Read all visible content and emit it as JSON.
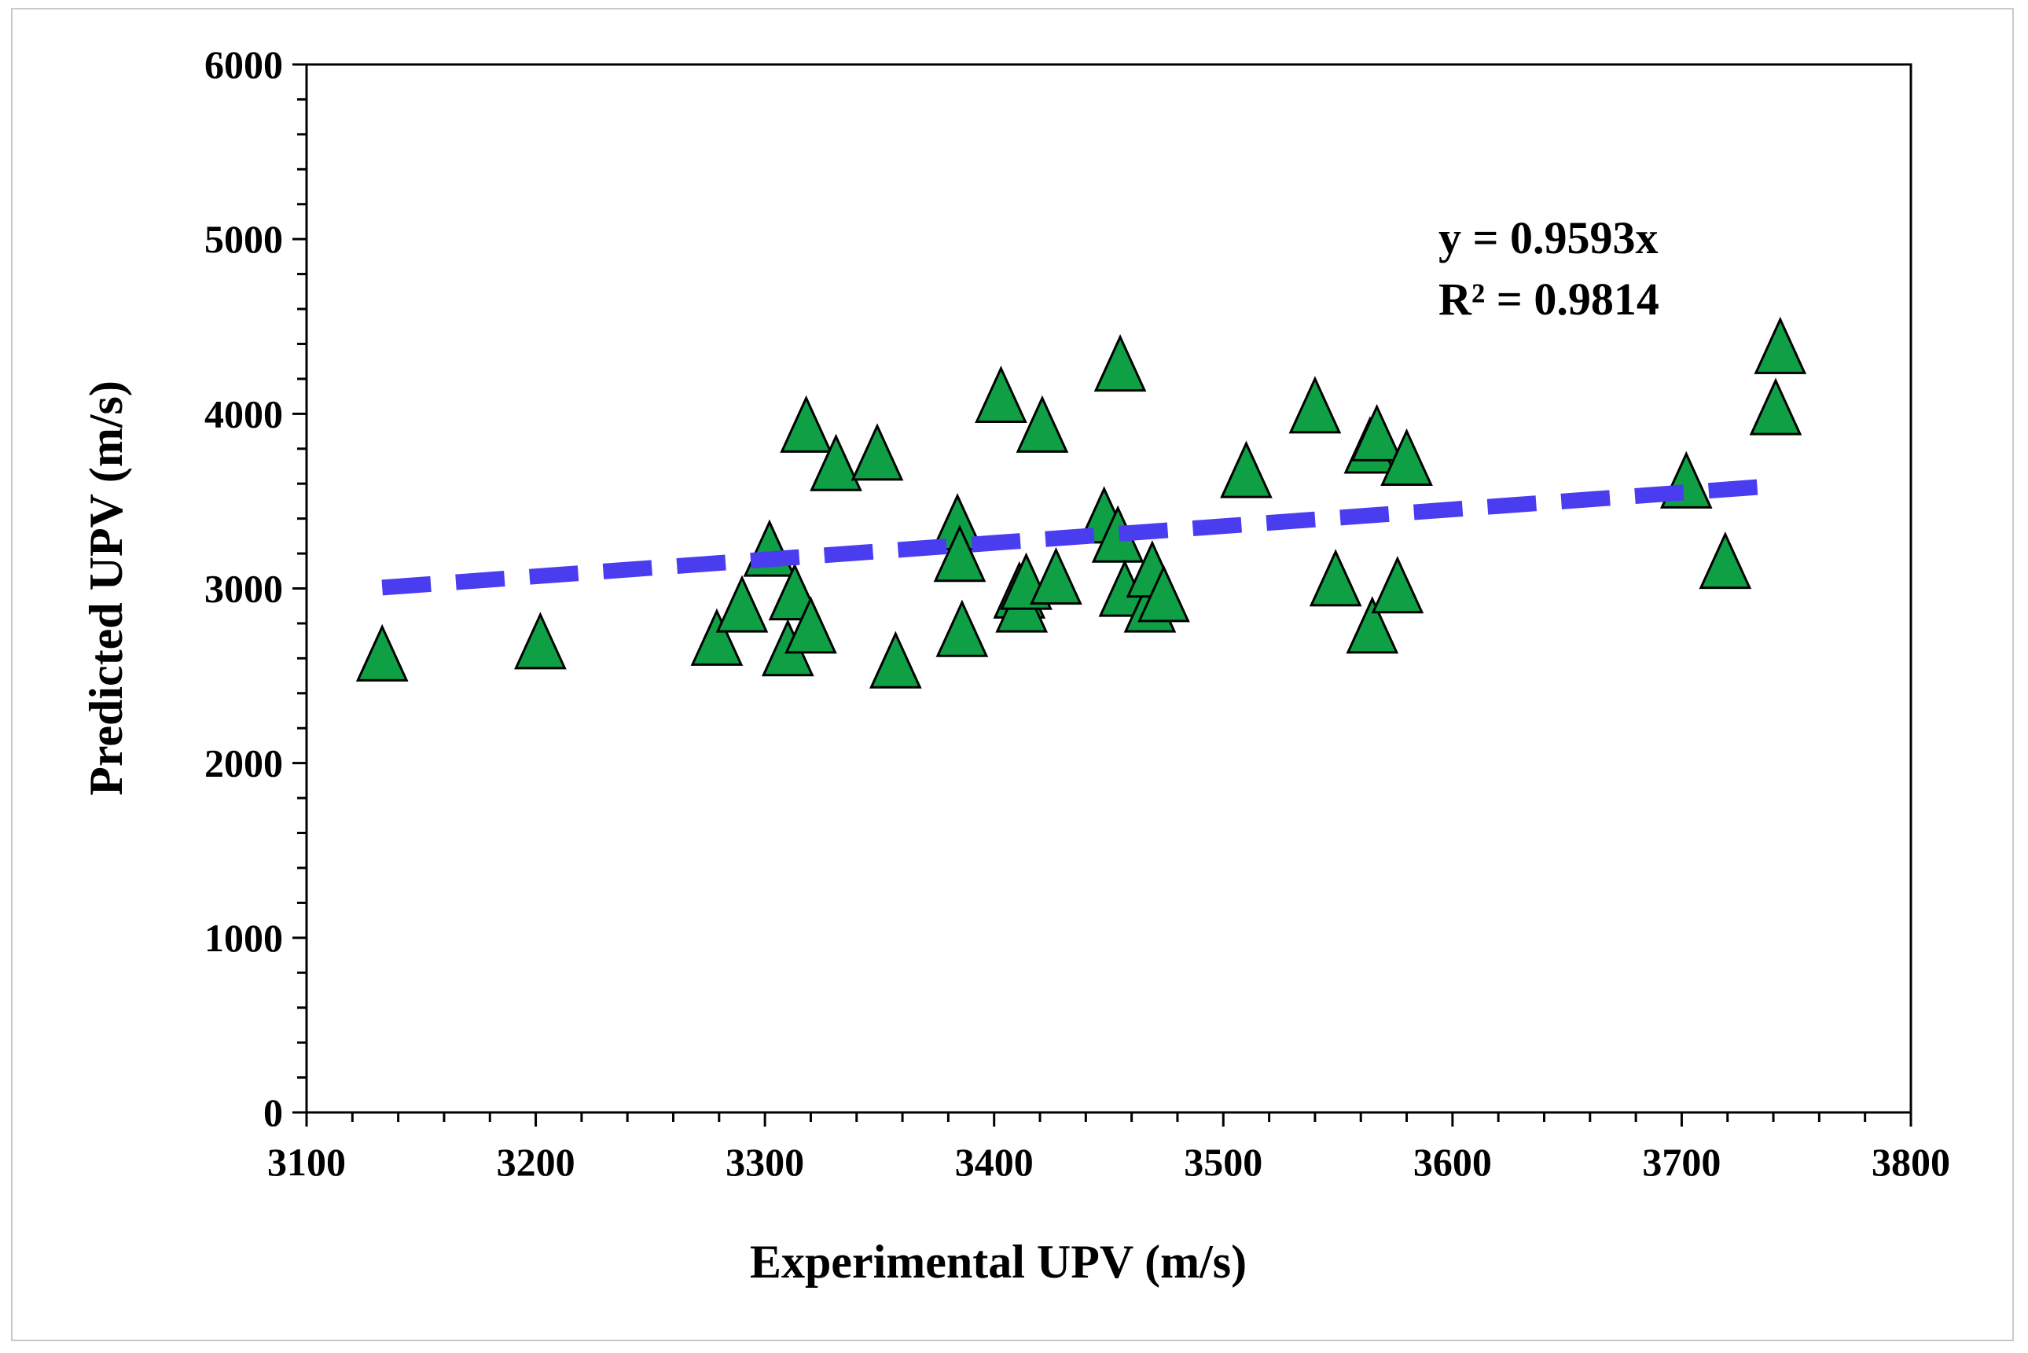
{
  "chart_data": {
    "type": "scatter",
    "title": "",
    "xlabel": "Experimental UPV (m/s)",
    "ylabel": "Predicted UPV (m/s)",
    "xlim": [
      3100,
      3800
    ],
    "ylim": [
      0,
      6000
    ],
    "x_major_ticks": [
      3100,
      3200,
      3300,
      3400,
      3500,
      3600,
      3700,
      3800
    ],
    "x_minor_step": 20,
    "y_major_ticks": [
      0,
      1000,
      2000,
      3000,
      4000,
      5000,
      6000
    ],
    "y_minor_step": 200,
    "x_tick_labels": [
      "3100",
      "3200",
      "3300",
      "3400",
      "3500",
      "3600",
      "3700",
      "3800"
    ],
    "y_tick_labels": [
      "0",
      "1000",
      "2000",
      "3000",
      "4000",
      "5000",
      "6000"
    ],
    "grid": false,
    "marker": {
      "shape": "triangle",
      "fill": "#0f9f45",
      "stroke": "#000000"
    },
    "trendline": {
      "type": "linear-through-origin",
      "slope": 0.9593,
      "x_range": [
        3133,
        3733
      ],
      "y_range": [
        3005,
        3580
      ],
      "color": "#4a3df0",
      "style": "dashed"
    },
    "annotations": {
      "equation": "y = 0.9593x",
      "r2": "R² = 0.9814"
    },
    "series": [
      {
        "name": "Predicted UPV",
        "points": [
          [
            3133,
            2600
          ],
          [
            3202,
            2670
          ],
          [
            3279,
            2690
          ],
          [
            3290,
            2880
          ],
          [
            3302,
            3200
          ],
          [
            3310,
            2630
          ],
          [
            3313,
            2950
          ],
          [
            3318,
            3910
          ],
          [
            3320,
            2760
          ],
          [
            3331,
            3690
          ],
          [
            3349,
            3750
          ],
          [
            3357,
            2560
          ],
          [
            3384,
            3350
          ],
          [
            3385,
            3170
          ],
          [
            3386,
            2740
          ],
          [
            3403,
            4080
          ],
          [
            3411,
            2960
          ],
          [
            3412,
            2880
          ],
          [
            3414,
            3010
          ],
          [
            3421,
            3910
          ],
          [
            3427,
            3040
          ],
          [
            3448,
            3390
          ],
          [
            3454,
            3280
          ],
          [
            3455,
            4260
          ],
          [
            3457,
            2970
          ],
          [
            3468,
            2880
          ],
          [
            3469,
            3080
          ],
          [
            3474,
            2940
          ],
          [
            3510,
            3650
          ],
          [
            3540,
            4020
          ],
          [
            3549,
            3030
          ],
          [
            3565,
            2760
          ],
          [
            3564,
            3790
          ],
          [
            3567,
            3860
          ],
          [
            3576,
            2990
          ],
          [
            3580,
            3720
          ],
          [
            3702,
            3590
          ],
          [
            3719,
            3130
          ],
          [
            3741,
            4010
          ],
          [
            3743,
            4360
          ]
        ]
      }
    ]
  }
}
